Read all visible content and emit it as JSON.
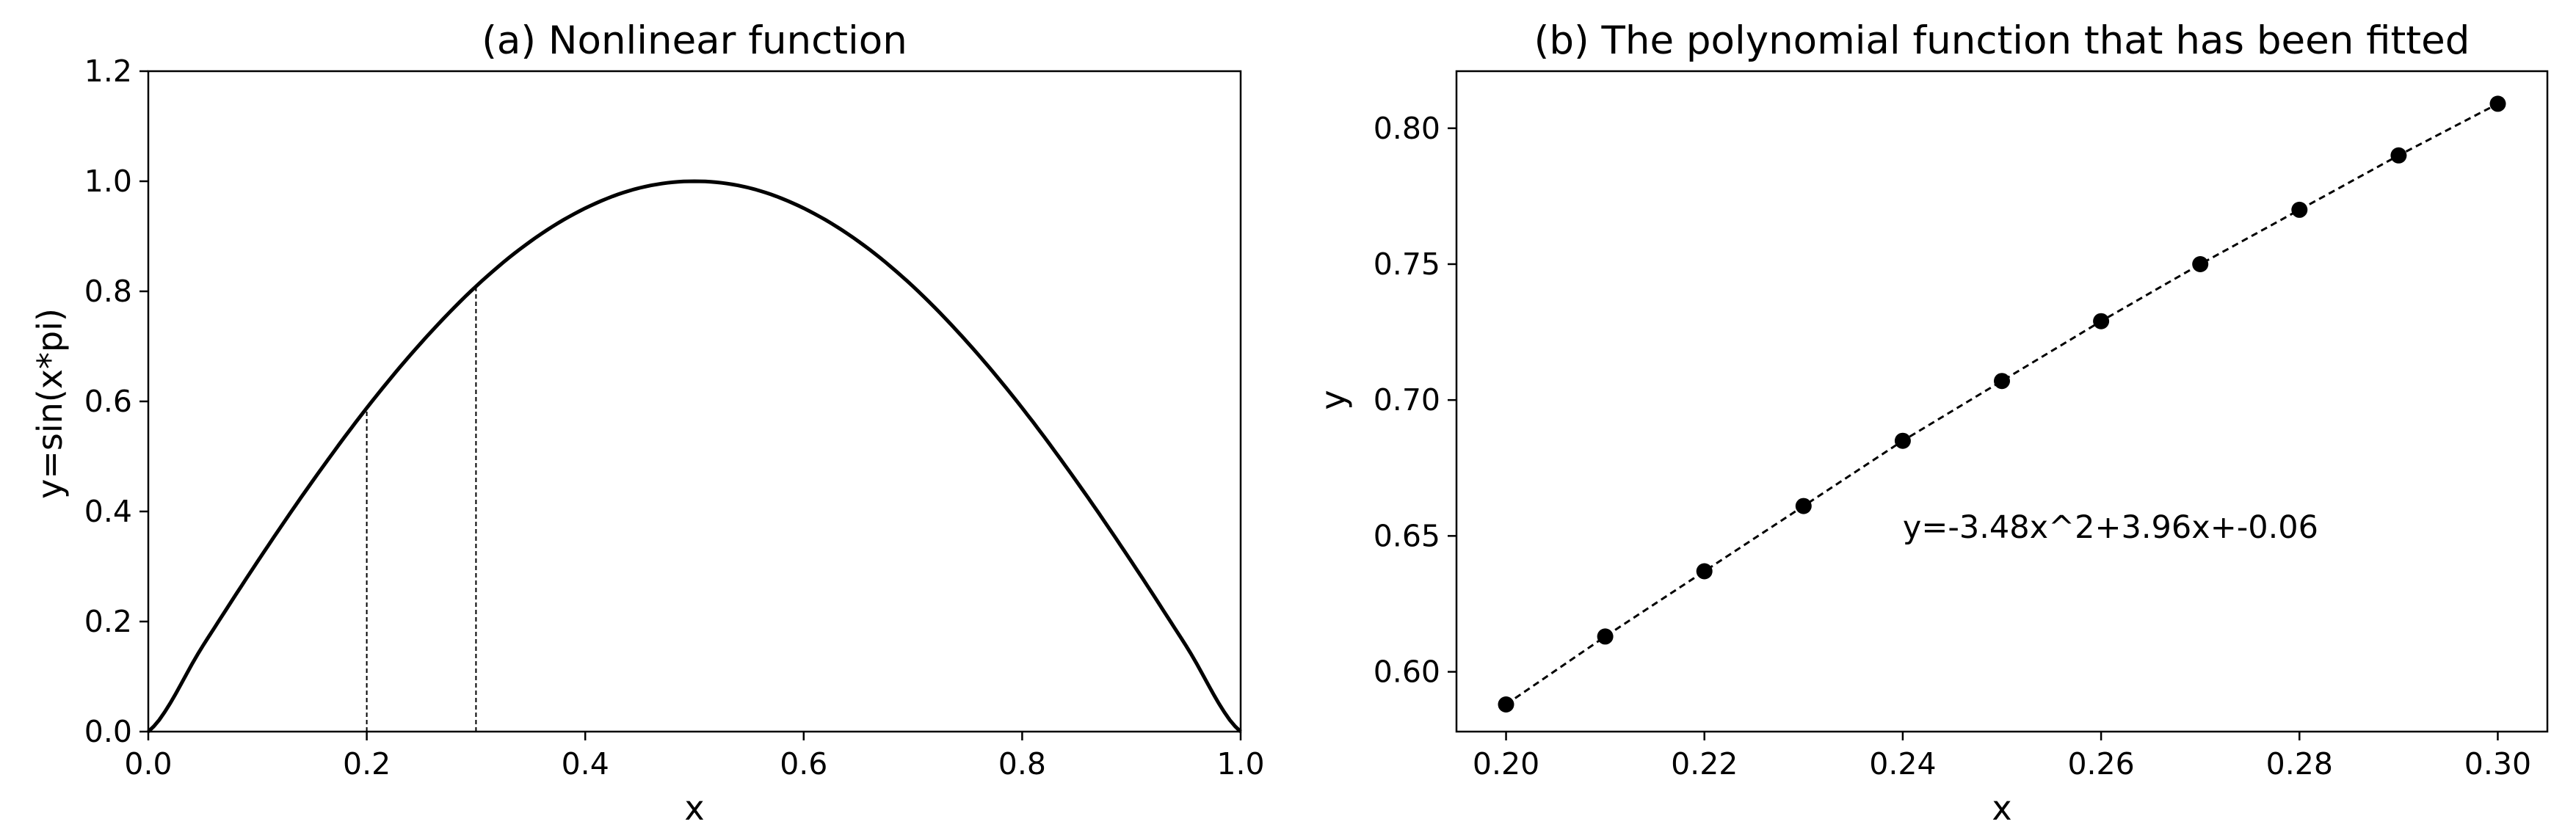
{
  "chart_data": [
    {
      "type": "line",
      "title": "(a) Nonlinear function",
      "xlabel": "x",
      "ylabel": "y=sin(x*pi)",
      "xlim": [
        0.0,
        1.0
      ],
      "ylim": [
        0.0,
        1.2
      ],
      "xticks": [
        0.0,
        0.2,
        0.4,
        0.6,
        0.8,
        1.0
      ],
      "xtick_labels": [
        "0.0",
        "0.2",
        "0.4",
        "0.6",
        "0.8",
        "1.0"
      ],
      "yticks": [
        0.0,
        0.2,
        0.4,
        0.6,
        0.8,
        1.0,
        1.2
      ],
      "ytick_labels": [
        "0.0",
        "0.2",
        "0.4",
        "0.6",
        "0.8",
        "1.0",
        "1.2"
      ],
      "series": [
        {
          "color": "#000000",
          "x": [
            0.0,
            0.05,
            0.1,
            0.15,
            0.2,
            0.25,
            0.3,
            0.35,
            0.4,
            0.45,
            0.5,
            0.55,
            0.6,
            0.65,
            0.7,
            0.75,
            0.8,
            0.85,
            0.9,
            0.95,
            1.0
          ],
          "y": [
            0.0,
            0.156,
            0.309,
            0.454,
            0.588,
            0.707,
            0.809,
            0.891,
            0.951,
            0.988,
            1.0,
            0.988,
            0.951,
            0.891,
            0.809,
            0.707,
            0.588,
            0.454,
            0.309,
            0.156,
            0.0
          ]
        }
      ],
      "vlines": [
        {
          "x": 0.2,
          "y_top": 0.588,
          "style": "dashed"
        },
        {
          "x": 0.3,
          "y_top": 0.809,
          "style": "dashed"
        }
      ],
      "grid": false
    },
    {
      "type": "line",
      "title": "(b) The polynomial function that has been fitted",
      "xlabel": "x",
      "ylabel": "y",
      "xlim": [
        0.195,
        0.305
      ],
      "ylim": [
        0.578,
        0.821
      ],
      "xticks": [
        0.2,
        0.22,
        0.24,
        0.26,
        0.28,
        0.3
      ],
      "xtick_labels": [
        "0.20",
        "0.22",
        "0.24",
        "0.26",
        "0.28",
        "0.30"
      ],
      "yticks": [
        0.6,
        0.65,
        0.7,
        0.75,
        0.8
      ],
      "ytick_labels": [
        "0.60",
        "0.65",
        "0.70",
        "0.75",
        "0.80"
      ],
      "series": [
        {
          "color": "#000000",
          "line_style": "dashed",
          "marker": "circle",
          "x": [
            0.2,
            0.21,
            0.22,
            0.23,
            0.24,
            0.25,
            0.26,
            0.27,
            0.28,
            0.29,
            0.3
          ],
          "y": [
            0.588,
            0.613,
            0.637,
            0.661,
            0.685,
            0.707,
            0.729,
            0.75,
            0.77,
            0.79,
            0.809
          ]
        }
      ],
      "annotation": {
        "text": "y=-3.48x^2+3.96x+-0.06",
        "x": 0.24,
        "y": 0.653
      },
      "grid": false
    }
  ]
}
